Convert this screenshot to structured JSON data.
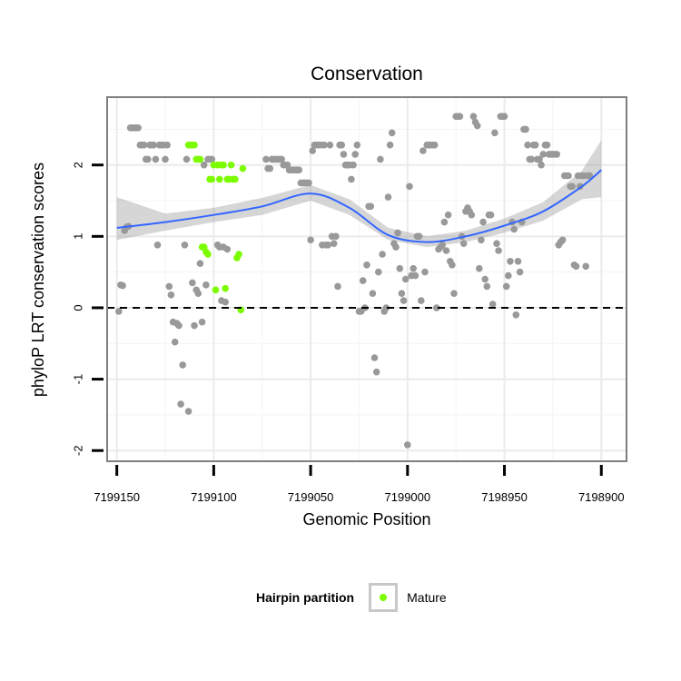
{
  "chart_data": {
    "type": "scatter",
    "title": "Conservation",
    "xlabel": "Genomic Position",
    "ylabel": "phyloP LRT conservation scores",
    "x_reversed": true,
    "xlim": [
      7199155,
      7198887
    ],
    "ylim": [
      -2.15,
      2.95
    ],
    "x_ticks": [
      7199150,
      7199100,
      7199050,
      7199000,
      7198950,
      7198900
    ],
    "x_tick_labels": [
      "7199150",
      "7199100",
      "7199050",
      "7199000",
      "7198950",
      "7198900"
    ],
    "y_ticks": [
      -2,
      -1,
      0,
      1,
      2
    ],
    "y_tick_labels": [
      "-2",
      "-1",
      "0",
      "1",
      "2"
    ],
    "grid": true,
    "reference_line": {
      "y": 0,
      "style": "dashed",
      "color": "#000000"
    },
    "legend": {
      "title": "Hairpin partition",
      "position": "bottom",
      "entries": [
        {
          "label": "Mature",
          "color": "#7cfc00"
        }
      ]
    },
    "series": [
      {
        "color": "#999999",
        "points": [
          [
            7199149,
            -0.05
          ],
          [
            7199148,
            0.32
          ],
          [
            7199147,
            0.31
          ],
          [
            7199146,
            1.08
          ],
          [
            7199145,
            1.13
          ],
          [
            7199144,
            1.14
          ],
          [
            7199143,
            2.52
          ],
          [
            7199142,
            2.52
          ],
          [
            7199141,
            2.52
          ],
          [
            7199140,
            2.52
          ],
          [
            7199139,
            2.52
          ],
          [
            7199138,
            2.28
          ],
          [
            7199137,
            2.28
          ],
          [
            7199136,
            2.28
          ],
          [
            7199135,
            2.08
          ],
          [
            7199134,
            2.08
          ],
          [
            7199133,
            2.28
          ],
          [
            7199132,
            2.28
          ],
          [
            7199131,
            2.28
          ],
          [
            7199130,
            2.08
          ],
          [
            7199129,
            0.88
          ],
          [
            7199128,
            2.28
          ],
          [
            7199127,
            2.28
          ],
          [
            7199126,
            2.28
          ],
          [
            7199125,
            2.08
          ],
          [
            7199124,
            2.28
          ],
          [
            7199123,
            0.3
          ],
          [
            7199122,
            0.18
          ],
          [
            7199121,
            -0.2
          ],
          [
            7199120,
            -0.48
          ],
          [
            7199119,
            -0.22
          ],
          [
            7199118,
            -0.25
          ],
          [
            7199117,
            -1.35
          ],
          [
            7199116,
            -0.8
          ],
          [
            7199115,
            0.88
          ],
          [
            7199114,
            2.08
          ],
          [
            7199113,
            -1.45
          ],
          [
            7199112,
            2.28
          ],
          [
            7199111,
            0.35
          ],
          [
            7199110,
            -0.25
          ],
          [
            7199109,
            0.25
          ],
          [
            7199108,
            0.2
          ],
          [
            7199107,
            0.62
          ],
          [
            7199106,
            -0.2
          ],
          [
            7199105,
            2.0
          ],
          [
            7199104,
            0.32
          ],
          [
            7199103,
            2.08
          ],
          [
            7199102,
            2.08
          ],
          [
            7199101,
            2.08
          ],
          [
            7199098,
            0.88
          ],
          [
            7199097,
            0.85
          ],
          [
            7199096,
            0.1
          ],
          [
            7199095,
            0.85
          ],
          [
            7199094,
            0.08
          ],
          [
            7199093,
            0.82
          ],
          [
            7199073,
            2.08
          ],
          [
            7199072,
            1.95
          ],
          [
            7199071,
            1.95
          ],
          [
            7199070,
            2.08
          ],
          [
            7199069,
            2.08
          ],
          [
            7199068,
            2.08
          ],
          [
            7199067,
            2.08
          ],
          [
            7199066,
            2.08
          ],
          [
            7199065,
            2.08
          ],
          [
            7199064,
            2.0
          ],
          [
            7199063,
            2.0
          ],
          [
            7199062,
            2.0
          ],
          [
            7199061,
            1.93
          ],
          [
            7199060,
            1.93
          ],
          [
            7199059,
            1.93
          ],
          [
            7199058,
            1.93
          ],
          [
            7199057,
            1.93
          ],
          [
            7199056,
            1.93
          ],
          [
            7199055,
            1.75
          ],
          [
            7199054,
            1.75
          ],
          [
            7199053,
            1.75
          ],
          [
            7199052,
            1.75
          ],
          [
            7199051,
            1.75
          ],
          [
            7199050,
            0.95
          ],
          [
            7199049,
            2.2
          ],
          [
            7199048,
            2.28
          ],
          [
            7199047,
            2.28
          ],
          [
            7199046,
            2.28
          ],
          [
            7199045,
            2.28
          ],
          [
            7199044,
            0.88
          ],
          [
            7199043,
            2.28
          ],
          [
            7199042,
            0.88
          ],
          [
            7199041,
            0.88
          ],
          [
            7199040,
            2.28
          ],
          [
            7199039,
            1.0
          ],
          [
            7199038,
            0.9
          ],
          [
            7199037,
            1.0
          ],
          [
            7199036,
            0.3
          ],
          [
            7199035,
            2.28
          ],
          [
            7199034,
            2.28
          ],
          [
            7199033,
            2.15
          ],
          [
            7199032,
            2.0
          ],
          [
            7199031,
            2.0
          ],
          [
            7199030,
            2.0
          ],
          [
            7199029,
            1.8
          ],
          [
            7199028,
            2.0
          ],
          [
            7199027,
            2.15
          ],
          [
            7199026,
            2.28
          ],
          [
            7199025,
            -0.05
          ],
          [
            7199024,
            -0.05
          ],
          [
            7199023,
            0.38
          ],
          [
            7199022,
            0.0
          ],
          [
            7199021,
            0.6
          ],
          [
            7199020,
            1.42
          ],
          [
            7199019,
            1.42
          ],
          [
            7199018,
            0.2
          ],
          [
            7199017,
            -0.7
          ],
          [
            7199016,
            -0.9
          ],
          [
            7199015,
            0.5
          ],
          [
            7199014,
            2.08
          ],
          [
            7199013,
            0.75
          ],
          [
            7199012,
            -0.05
          ],
          [
            7199011,
            0.0
          ],
          [
            7199010,
            1.55
          ],
          [
            7199009,
            2.28
          ],
          [
            7199008,
            2.45
          ],
          [
            7199007,
            0.9
          ],
          [
            7199006,
            0.85
          ],
          [
            7199005,
            1.05
          ],
          [
            7199004,
            0.55
          ],
          [
            7199003,
            0.2
          ],
          [
            7199002,
            0.1
          ],
          [
            7199001,
            0.4
          ],
          [
            7199000,
            -1.92
          ],
          [
            7198999,
            1.7
          ],
          [
            7198998,
            0.45
          ],
          [
            7198997,
            0.55
          ],
          [
            7198996,
            0.45
          ],
          [
            7198995,
            1.0
          ],
          [
            7198994,
            1.0
          ],
          [
            7198993,
            0.1
          ],
          [
            7198992,
            2.2
          ],
          [
            7198991,
            0.5
          ],
          [
            7198990,
            2.28
          ],
          [
            7198989,
            2.28
          ],
          [
            7198988,
            2.28
          ],
          [
            7198987,
            2.28
          ],
          [
            7198986,
            2.28
          ],
          [
            7198985,
            0.0
          ],
          [
            7198984,
            0.82
          ],
          [
            7198983,
            0.85
          ],
          [
            7198982,
            0.88
          ],
          [
            7198981,
            1.2
          ],
          [
            7198980,
            0.8
          ],
          [
            7198979,
            1.3
          ],
          [
            7198978,
            0.65
          ],
          [
            7198977,
            0.6
          ],
          [
            7198976,
            0.2
          ],
          [
            7198975,
            2.68
          ],
          [
            7198974,
            2.68
          ],
          [
            7198973,
            2.68
          ],
          [
            7198972,
            1.0
          ],
          [
            7198971,
            0.9
          ],
          [
            7198970,
            1.35
          ],
          [
            7198969,
            1.4
          ],
          [
            7198968,
            1.35
          ],
          [
            7198967,
            1.3
          ],
          [
            7198966,
            2.68
          ],
          [
            7198965,
            2.6
          ],
          [
            7198964,
            2.55
          ],
          [
            7198963,
            0.55
          ],
          [
            7198962,
            0.95
          ],
          [
            7198961,
            1.2
          ],
          [
            7198960,
            0.4
          ],
          [
            7198959,
            0.3
          ],
          [
            7198958,
            1.3
          ],
          [
            7198957,
            1.3
          ],
          [
            7198956,
            0.05
          ],
          [
            7198955,
            2.45
          ],
          [
            7198954,
            0.9
          ],
          [
            7198953,
            0.8
          ],
          [
            7198952,
            2.68
          ],
          [
            7198951,
            2.68
          ],
          [
            7198950,
            2.68
          ],
          [
            7198949,
            0.3
          ],
          [
            7198948,
            0.45
          ],
          [
            7198947,
            0.65
          ],
          [
            7198946,
            1.2
          ],
          [
            7198945,
            1.1
          ],
          [
            7198944,
            -0.1
          ],
          [
            7198943,
            0.65
          ],
          [
            7198942,
            0.5
          ],
          [
            7198941,
            1.2
          ],
          [
            7198940,
            2.5
          ],
          [
            7198939,
            2.5
          ],
          [
            7198938,
            2.28
          ],
          [
            7198937,
            2.08
          ],
          [
            7198936,
            2.08
          ],
          [
            7198935,
            2.28
          ],
          [
            7198934,
            2.28
          ],
          [
            7198933,
            2.08
          ],
          [
            7198932,
            2.08
          ],
          [
            7198931,
            2.0
          ],
          [
            7198930,
            2.15
          ],
          [
            7198929,
            2.28
          ],
          [
            7198928,
            2.28
          ],
          [
            7198927,
            2.15
          ],
          [
            7198926,
            2.15
          ],
          [
            7198925,
            2.15
          ],
          [
            7198924,
            2.15
          ],
          [
            7198923,
            2.15
          ],
          [
            7198922,
            0.88
          ],
          [
            7198921,
            0.92
          ],
          [
            7198920,
            0.95
          ],
          [
            7198919,
            1.85
          ],
          [
            7198918,
            1.85
          ],
          [
            7198917,
            1.85
          ],
          [
            7198916,
            1.7
          ],
          [
            7198915,
            1.7
          ],
          [
            7198914,
            0.6
          ],
          [
            7198913,
            0.58
          ],
          [
            7198912,
            1.85
          ],
          [
            7198911,
            1.7
          ],
          [
            7198910,
            1.85
          ],
          [
            7198909,
            1.85
          ],
          [
            7198908,
            0.58
          ],
          [
            7198907,
            1.85
          ],
          [
            7198906,
            1.85
          ]
        ]
      },
      {
        "name": "Mature",
        "color": "#7cfc00",
        "points": [
          [
            7199113,
            2.28
          ],
          [
            7199112,
            2.28
          ],
          [
            7199111,
            2.28
          ],
          [
            7199110,
            2.28
          ],
          [
            7199109,
            2.08
          ],
          [
            7199108,
            2.08
          ],
          [
            7199107,
            2.08
          ],
          [
            7199106,
            0.85
          ],
          [
            7199105,
            0.85
          ],
          [
            7199104,
            0.78
          ],
          [
            7199103,
            0.75
          ],
          [
            7199102,
            1.8
          ],
          [
            7199101,
            1.8
          ],
          [
            7199100,
            2.0
          ],
          [
            7199099,
            0.25
          ],
          [
            7199098,
            2.0
          ],
          [
            7199097,
            1.8
          ],
          [
            7199096,
            2.0
          ],
          [
            7199095,
            2.0
          ],
          [
            7199094,
            0.27
          ],
          [
            7199093,
            1.8
          ],
          [
            7199092,
            1.8
          ],
          [
            7199091,
            2.0
          ],
          [
            7199090,
            1.8
          ],
          [
            7199089,
            1.8
          ],
          [
            7199088,
            0.7
          ],
          [
            7199087,
            0.75
          ],
          [
            7199086,
            -0.03
          ],
          [
            7199085,
            1.95
          ]
        ]
      }
    ],
    "trend": {
      "method": "loess",
      "color": "#3366ff",
      "band_color": "#999999",
      "x": [
        7199150,
        7199125,
        7199100,
        7199075,
        7199050,
        7199030,
        7199010,
        7198990,
        7198970,
        7198950,
        7198930,
        7198910,
        7198900
      ],
      "y": [
        1.12,
        1.2,
        1.3,
        1.42,
        1.6,
        1.4,
        1.02,
        0.92,
        1.0,
        1.15,
        1.35,
        1.7,
        1.93
      ],
      "lower": [
        0.95,
        1.08,
        1.2,
        1.3,
        1.5,
        1.3,
        0.95,
        0.85,
        0.92,
        1.05,
        1.22,
        1.52,
        1.55
      ],
      "upper": [
        1.55,
        1.32,
        1.4,
        1.54,
        1.72,
        1.52,
        1.12,
        1.0,
        1.08,
        1.25,
        1.48,
        1.92,
        2.35
      ]
    }
  }
}
